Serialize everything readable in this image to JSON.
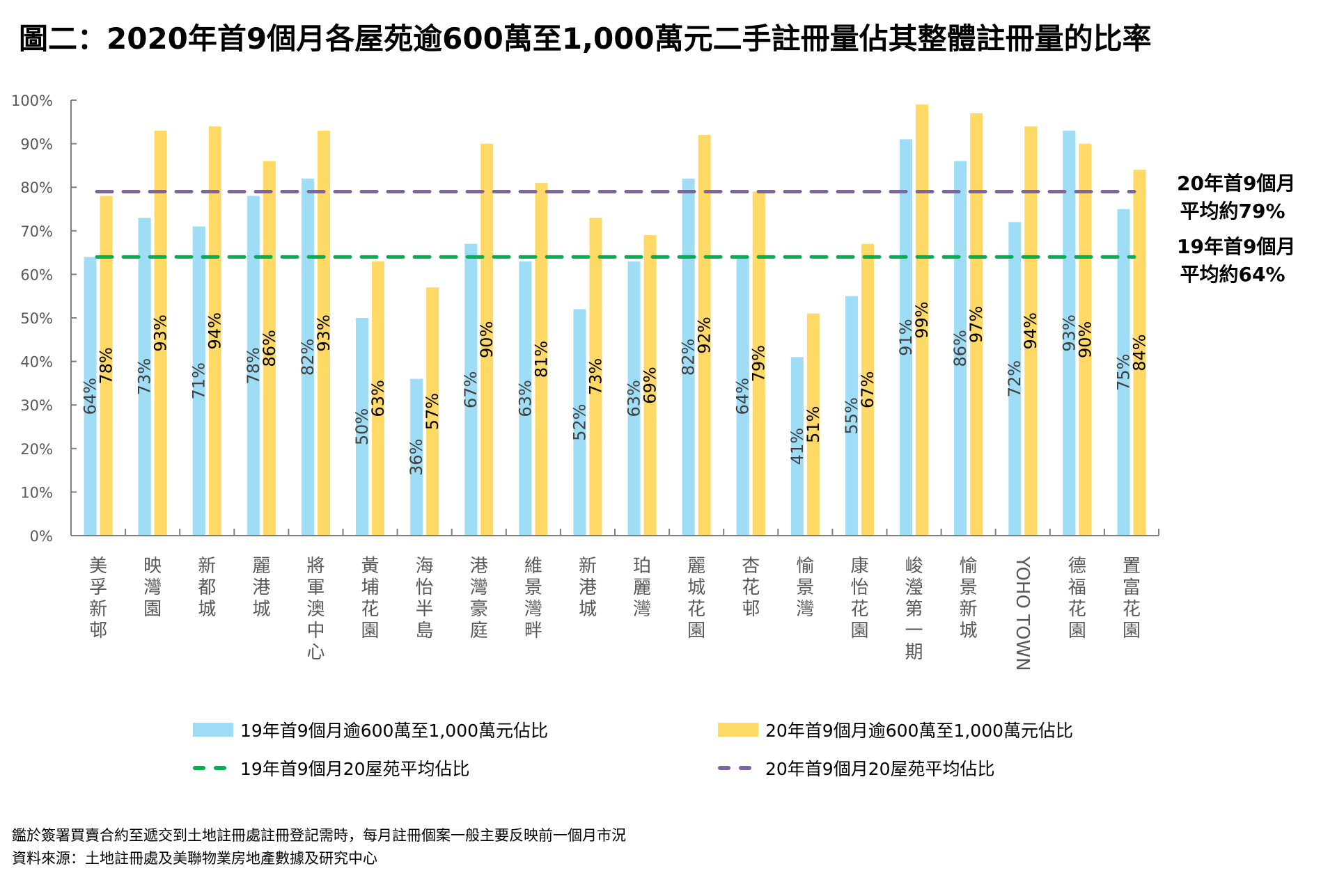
{
  "title": "圖二：2020年首9個月各屋苑逾600萬至1,000萬元二手註冊量佔其整體註冊量的比率",
  "chart_data": {
    "type": "bar",
    "title": "圖二：2020年首9個月各屋苑逾600萬至1,000萬元二手註冊量佔其整體註冊量的比率",
    "xlabel": "",
    "ylabel": "",
    "ylim": [
      0,
      100
    ],
    "y_ticks": [
      "0%",
      "10%",
      "20%",
      "30%",
      "40%",
      "50%",
      "60%",
      "70%",
      "80%",
      "90%",
      "100%"
    ],
    "grid": false,
    "legend_position": "bottom",
    "categories": [
      "美孚新邨",
      "映灣園",
      "新都城",
      "麗港城",
      "將軍澳中心",
      "黃埔花園",
      "海怡半島",
      "港灣豪庭",
      "維景灣畔",
      "新港城",
      "珀麗灣",
      "麗城花園",
      "杏花邨",
      "愉景灣",
      "康怡花園",
      "峻瀅第一期",
      "愉景新城",
      "YOHO TOWN",
      "德福花園",
      "置富花園"
    ],
    "series": [
      {
        "name": "19年首9個月逾600萬至1,000萬元佔比",
        "color": "#9EDDF5",
        "label_color": "#404040",
        "values": [
          64,
          73,
          71,
          78,
          82,
          50,
          36,
          67,
          63,
          52,
          63,
          82,
          64,
          41,
          55,
          91,
          86,
          72,
          93,
          75
        ]
      },
      {
        "name": "20年首9個月逾600萬至1,000萬元佔比",
        "color": "#FFD966",
        "label_color": "#000000",
        "values": [
          78,
          93,
          94,
          86,
          93,
          63,
          57,
          90,
          81,
          73,
          69,
          92,
          79,
          51,
          67,
          99,
          97,
          94,
          90,
          84
        ]
      }
    ],
    "reference_lines": [
      {
        "name": "19年首9個月20屋苑平均佔比",
        "value": 64,
        "color": "#00B050",
        "style": "dashed",
        "annotation": [
          "19年首9個月",
          "平均約64%"
        ],
        "annotation_color": "#00871F"
      },
      {
        "name": "20年首9個月20屋苑平均佔比",
        "value": 79,
        "color": "#8064A2",
        "style": "dashed",
        "annotation": [
          "20年首9個月",
          "平均約79%"
        ],
        "annotation_color": "#7030A0"
      }
    ]
  },
  "legend": [
    {
      "label": "19年首9個月逾600萬至1,000萬元佔比",
      "kind": "bar",
      "color": "#9EDDF5"
    },
    {
      "label": "20年首9個月逾600萬至1,000萬元佔比",
      "kind": "bar",
      "color": "#FFD966"
    },
    {
      "label": "19年首9個月20屋苑平均佔比",
      "kind": "dashed-line",
      "color": "#00B050"
    },
    {
      "label": "20年首9個月20屋苑平均佔比",
      "kind": "dashed-line",
      "color": "#8064A2"
    }
  ],
  "footnotes": [
    "鑑於簽署買賣合約至遞交到土地註冊處註冊登記需時，每月註冊個案一般主要反映前一個月市況",
    "資料來源：土地註冊處及美聯物業房地產數據及研究中心"
  ]
}
